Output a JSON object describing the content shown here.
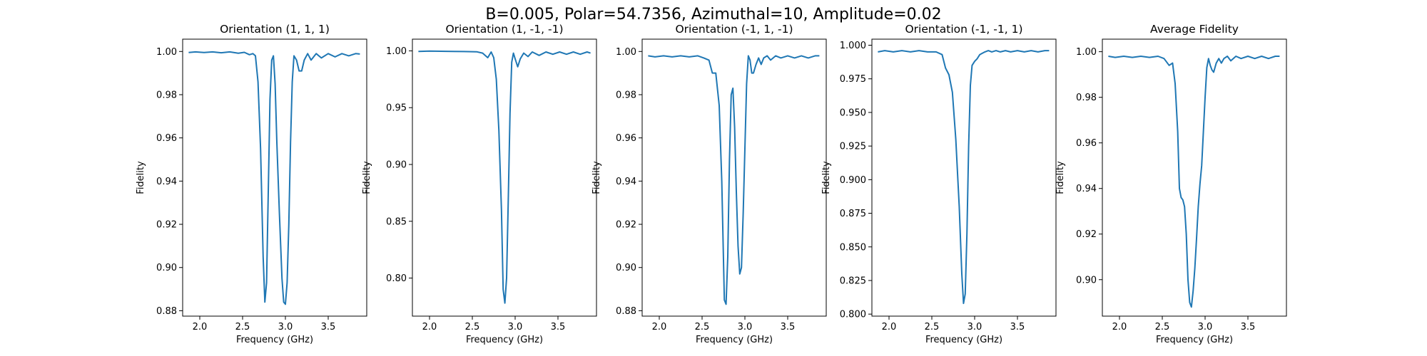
{
  "figure": {
    "suptitle": "B=0.005, Polar=54.7356, Azimuthal=10, Amplitude=0.02"
  },
  "chart_data": [
    {
      "type": "line",
      "title": "Orientation (1, 1, 1)",
      "xlabel": "Frequency (GHz)",
      "ylabel": "Fidelity",
      "xlim": [
        1.8,
        3.95
      ],
      "ylim": [
        0.8775,
        1.0057
      ],
      "xticks": [
        2.0,
        2.5,
        3.0,
        3.5
      ],
      "xtick_labels": [
        "2.0",
        "2.5",
        "3.0",
        "3.5"
      ],
      "yticks": [
        0.88,
        0.9,
        0.92,
        0.94,
        0.96,
        0.98,
        1.0
      ],
      "ytick_labels": [
        "0.88",
        "0.90",
        "0.92",
        "0.94",
        "0.96",
        "0.98",
        "1.00"
      ],
      "grid": false,
      "series": [
        {
          "x": [
            1.87,
            1.95,
            2.05,
            2.15,
            2.25,
            2.35,
            2.45,
            2.52,
            2.58,
            2.62,
            2.65,
            2.68,
            2.71,
            2.74,
            2.76,
            2.78,
            2.8,
            2.82,
            2.84,
            2.86,
            2.88,
            2.9,
            2.93,
            2.96,
            2.98,
            3.0,
            3.02,
            3.04,
            3.06,
            3.08,
            3.1,
            3.13,
            3.16,
            3.19,
            3.22,
            3.26,
            3.3,
            3.36,
            3.42,
            3.5,
            3.58,
            3.66,
            3.74,
            3.82,
            3.87
          ],
          "y": [
            0.9995,
            0.9998,
            0.9995,
            0.9998,
            0.9994,
            0.9998,
            0.9992,
            0.9996,
            0.9985,
            0.999,
            0.998,
            0.986,
            0.955,
            0.905,
            0.884,
            0.893,
            0.935,
            0.978,
            0.996,
            0.998,
            0.985,
            0.958,
            0.925,
            0.895,
            0.884,
            0.883,
            0.893,
            0.92,
            0.958,
            0.986,
            0.998,
            0.996,
            0.991,
            0.991,
            0.996,
            0.999,
            0.996,
            0.999,
            0.997,
            0.999,
            0.9975,
            0.999,
            0.998,
            0.999,
            0.9988
          ]
        }
      ]
    },
    {
      "type": "line",
      "title": "Orientation (1, -1, -1)",
      "xlabel": "Frequency (GHz)",
      "ylabel": "Fidelity",
      "xlim": [
        1.8,
        3.95
      ],
      "ylim": [
        0.7665,
        1.0103
      ],
      "xticks": [
        2.0,
        2.5,
        3.0,
        3.5
      ],
      "xtick_labels": [
        "2.0",
        "2.5",
        "3.0",
        "3.5"
      ],
      "yticks": [
        0.8,
        0.85,
        0.9,
        0.95,
        1.0
      ],
      "ytick_labels": [
        "0.80",
        "0.85",
        "0.90",
        "0.95",
        "1.00"
      ],
      "grid": false,
      "series": [
        {
          "x": [
            1.87,
            2.0,
            2.2,
            2.4,
            2.55,
            2.62,
            2.68,
            2.72,
            2.75,
            2.78,
            2.81,
            2.84,
            2.86,
            2.88,
            2.9,
            2.92,
            2.94,
            2.96,
            2.98,
            3.0,
            3.03,
            3.06,
            3.1,
            3.15,
            3.2,
            3.28,
            3.36,
            3.44,
            3.52,
            3.6,
            3.68,
            3.76,
            3.84,
            3.88
          ],
          "y": [
            0.9995,
            0.9998,
            0.9996,
            0.9994,
            0.9992,
            0.998,
            0.994,
            0.999,
            0.994,
            0.975,
            0.93,
            0.86,
            0.79,
            0.778,
            0.8,
            0.87,
            0.945,
            0.99,
            0.998,
            0.993,
            0.986,
            0.993,
            0.998,
            0.995,
            0.999,
            0.996,
            0.999,
            0.997,
            0.999,
            0.997,
            0.999,
            0.997,
            0.999,
            0.998
          ]
        }
      ]
    },
    {
      "type": "line",
      "title": "Orientation (-1, 1, -1)",
      "xlabel": "Frequency (GHz)",
      "ylabel": "Fidelity",
      "xlim": [
        1.8,
        3.95
      ],
      "ylim": [
        0.8775,
        1.0057
      ],
      "xticks": [
        2.0,
        2.5,
        3.0,
        3.5
      ],
      "xtick_labels": [
        "2.0",
        "2.5",
        "3.0",
        "3.5"
      ],
      "yticks": [
        0.88,
        0.9,
        0.92,
        0.94,
        0.96,
        0.98,
        1.0
      ],
      "ytick_labels": [
        "0.88",
        "0.90",
        "0.92",
        "0.94",
        "0.96",
        "0.98",
        "1.00"
      ],
      "grid": false,
      "series": [
        {
          "x": [
            1.87,
            1.95,
            2.05,
            2.15,
            2.25,
            2.35,
            2.45,
            2.52,
            2.58,
            2.62,
            2.66,
            2.7,
            2.73,
            2.76,
            2.78,
            2.8,
            2.82,
            2.84,
            2.86,
            2.88,
            2.9,
            2.92,
            2.94,
            2.96,
            2.98,
            3.0,
            3.02,
            3.04,
            3.06,
            3.08,
            3.1,
            3.13,
            3.16,
            3.19,
            3.22,
            3.26,
            3.3,
            3.36,
            3.42,
            3.5,
            3.58,
            3.66,
            3.74,
            3.82,
            3.87
          ],
          "y": [
            0.998,
            0.9975,
            0.998,
            0.9975,
            0.998,
            0.9975,
            0.998,
            0.997,
            0.996,
            0.99,
            0.99,
            0.975,
            0.94,
            0.885,
            0.883,
            0.905,
            0.95,
            0.98,
            0.983,
            0.965,
            0.935,
            0.91,
            0.897,
            0.9,
            0.925,
            0.955,
            0.985,
            0.998,
            0.996,
            0.99,
            0.99,
            0.994,
            0.997,
            0.994,
            0.997,
            0.998,
            0.996,
            0.998,
            0.997,
            0.998,
            0.997,
            0.998,
            0.997,
            0.998,
            0.998
          ]
        }
      ]
    },
    {
      "type": "line",
      "title": "Orientation (-1, -1, 1)",
      "xlabel": "Frequency (GHz)",
      "ylabel": "Fidelity",
      "xlim": [
        1.8,
        3.95
      ],
      "ylim": [
        0.7985,
        1.0045
      ],
      "xticks": [
        2.0,
        2.5,
        3.0,
        3.5
      ],
      "xtick_labels": [
        "2.0",
        "2.5",
        "3.0",
        "3.5"
      ],
      "yticks": [
        0.8,
        0.825,
        0.85,
        0.875,
        0.9,
        0.925,
        0.95,
        0.975,
        1.0
      ],
      "ytick_labels": [
        "0.800",
        "0.825",
        "0.850",
        "0.875",
        "0.900",
        "0.925",
        "0.950",
        "0.975",
        "1.000"
      ],
      "grid": false,
      "series": [
        {
          "x": [
            1.87,
            1.95,
            2.05,
            2.15,
            2.25,
            2.35,
            2.45,
            2.55,
            2.62,
            2.66,
            2.7,
            2.74,
            2.78,
            2.82,
            2.85,
            2.87,
            2.89,
            2.91,
            2.93,
            2.95,
            2.97,
            3.0,
            3.03,
            3.06,
            3.09,
            3.12,
            3.16,
            3.2,
            3.25,
            3.3,
            3.36,
            3.42,
            3.5,
            3.58,
            3.66,
            3.74,
            3.82,
            3.87
          ],
          "y": [
            0.995,
            0.996,
            0.995,
            0.996,
            0.995,
            0.996,
            0.995,
            0.995,
            0.993,
            0.983,
            0.978,
            0.965,
            0.93,
            0.88,
            0.83,
            0.808,
            0.815,
            0.86,
            0.925,
            0.97,
            0.985,
            0.988,
            0.99,
            0.993,
            0.994,
            0.995,
            0.996,
            0.995,
            0.996,
            0.995,
            0.996,
            0.995,
            0.996,
            0.995,
            0.996,
            0.995,
            0.996,
            0.996
          ]
        }
      ]
    },
    {
      "type": "line",
      "title": "Average Fidelity",
      "xlabel": "Frequency (GHz)",
      "ylabel": "Fidelity",
      "xlim": [
        1.8,
        3.95
      ],
      "ylim": [
        0.884,
        1.0055
      ],
      "xticks": [
        2.0,
        2.5,
        3.0,
        3.5
      ],
      "xtick_labels": [
        "2.0",
        "2.5",
        "3.0",
        "3.5"
      ],
      "yticks": [
        0.9,
        0.92,
        0.94,
        0.96,
        0.98,
        1.0
      ],
      "ytick_labels": [
        "0.90",
        "0.92",
        "0.94",
        "0.96",
        "0.98",
        "1.00"
      ],
      "grid": false,
      "series": [
        {
          "x": [
            1.87,
            1.95,
            2.05,
            2.15,
            2.25,
            2.35,
            2.45,
            2.52,
            2.58,
            2.62,
            2.65,
            2.68,
            2.7,
            2.72,
            2.74,
            2.76,
            2.78,
            2.8,
            2.82,
            2.84,
            2.86,
            2.88,
            2.9,
            2.92,
            2.94,
            2.96,
            2.98,
            3.0,
            3.02,
            3.04,
            3.06,
            3.08,
            3.1,
            3.13,
            3.16,
            3.19,
            3.22,
            3.26,
            3.3,
            3.36,
            3.42,
            3.5,
            3.58,
            3.66,
            3.74,
            3.82,
            3.87
          ],
          "y": [
            0.998,
            0.9975,
            0.998,
            0.9975,
            0.998,
            0.9975,
            0.998,
            0.997,
            0.994,
            0.995,
            0.986,
            0.965,
            0.94,
            0.936,
            0.935,
            0.932,
            0.92,
            0.9,
            0.89,
            0.888,
            0.895,
            0.905,
            0.918,
            0.932,
            0.942,
            0.95,
            0.965,
            0.98,
            0.993,
            0.997,
            0.994,
            0.992,
            0.991,
            0.995,
            0.997,
            0.995,
            0.997,
            0.998,
            0.996,
            0.998,
            0.997,
            0.998,
            0.997,
            0.998,
            0.997,
            0.998,
            0.998
          ]
        }
      ]
    }
  ]
}
